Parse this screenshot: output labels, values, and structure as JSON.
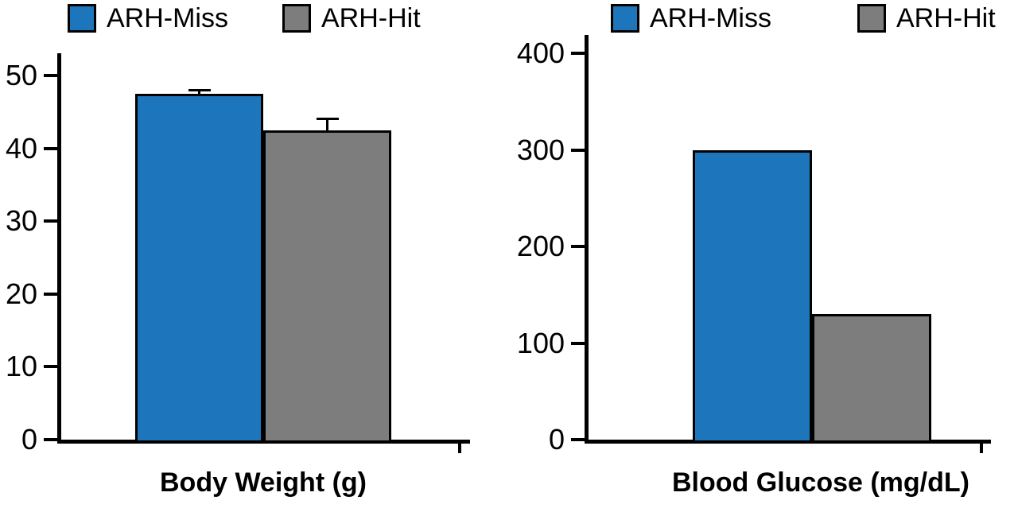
{
  "figure": {
    "background": "#ffffff",
    "axis_color": "#000000",
    "bar_border_color": "#000000"
  },
  "colors": {
    "arh_miss": "#1d76bb",
    "arh_hit": "#7d7d7d"
  },
  "chart_data": [
    {
      "type": "bar",
      "title": "Body Weight (g)",
      "categories": [
        "ARH-Miss",
        "ARH-Hit"
      ],
      "values": [
        47.5,
        42.5
      ],
      "errors": [
        0.5,
        1.5
      ],
      "ylim": [
        0,
        50
      ],
      "yticks": [
        0,
        10,
        20,
        30,
        40,
        50
      ],
      "legend": [
        "ARH-Miss",
        "ARH-Hit"
      ],
      "legend_position": "top",
      "colors": [
        "#1d76bb",
        "#7d7d7d"
      ],
      "grid": false,
      "xlabel": "",
      "ylabel": ""
    },
    {
      "type": "bar",
      "title": "Blood Glucose (mg/dL)",
      "categories": [
        "ARH-Miss",
        "ARH-Hit"
      ],
      "values": [
        300,
        130
      ],
      "errors": [
        0,
        0
      ],
      "ylim": [
        0,
        400
      ],
      "yticks": [
        0,
        100,
        200,
        300,
        400
      ],
      "legend": [
        "ARH-Miss",
        "ARH-Hit"
      ],
      "legend_position": "top",
      "colors": [
        "#1d76bb",
        "#7d7d7d"
      ],
      "grid": false,
      "xlabel": "",
      "ylabel": ""
    }
  ]
}
